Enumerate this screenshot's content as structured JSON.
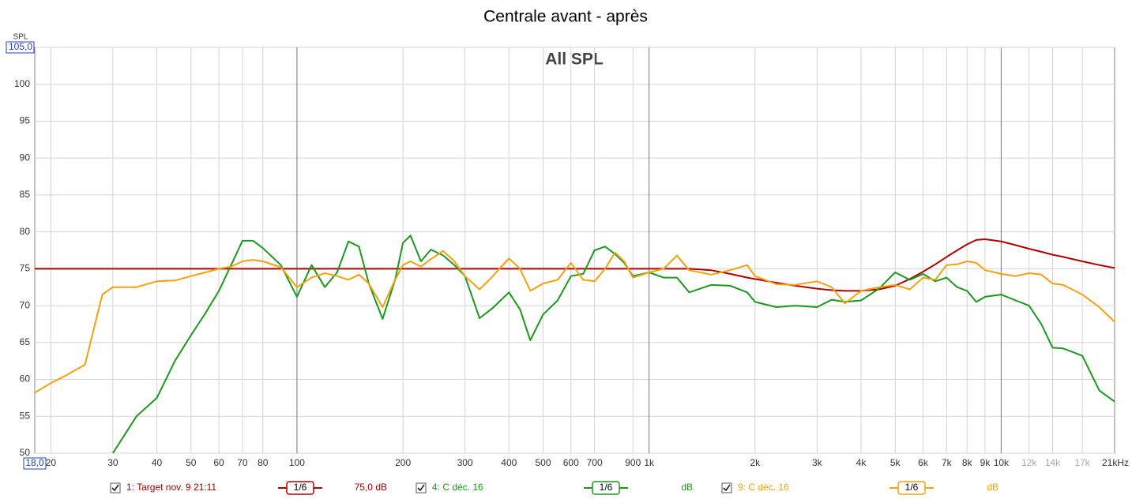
{
  "chart_data": {
    "type": "line",
    "title": "Centrale avant - après",
    "annotation": "All SPL",
    "y_label": "SPL",
    "log_x": true,
    "grid": true,
    "xlim": [
      18,
      21000
    ],
    "ylim": [
      50,
      105
    ],
    "xticks": [
      {
        "value": 18,
        "label": "18,0"
      },
      20,
      30,
      40,
      50,
      60,
      70,
      80,
      100,
      200,
      300,
      400,
      500,
      600,
      700,
      900,
      {
        "value": 1000,
        "label": "1k"
      },
      {
        "value": 2000,
        "label": "2k"
      },
      {
        "value": 3000,
        "label": "3k"
      },
      {
        "value": 4000,
        "label": "4k"
      },
      {
        "value": 5000,
        "label": "5k"
      },
      {
        "value": 6000,
        "label": "6k"
      },
      {
        "value": 7000,
        "label": "7k"
      },
      {
        "value": 8000,
        "label": "8k"
      },
      {
        "value": 9000,
        "label": "9k"
      },
      {
        "value": 10000,
        "label": "10k"
      },
      {
        "value": 12000,
        "label": "12k",
        "color": "#aaaaaa"
      },
      {
        "value": 14000,
        "label": "14k",
        "color": "#aaaaaa"
      },
      {
        "value": 17000,
        "label": "17k",
        "color": "#aaaaaa"
      },
      {
        "value": 21000,
        "label": "21kHz"
      }
    ],
    "yticks": [
      50,
      55,
      60,
      65,
      70,
      75,
      80,
      85,
      90,
      95,
      100,
      {
        "value": 105,
        "label": "105,0"
      }
    ],
    "x": [
      18,
      20,
      22,
      25,
      28,
      30,
      35,
      40,
      45,
      50,
      55,
      60,
      65,
      70,
      75,
      80,
      90,
      100,
      110,
      120,
      130,
      140,
      150,
      160,
      175,
      190,
      200,
      210,
      225,
      240,
      260,
      280,
      300,
      330,
      360,
      400,
      430,
      460,
      500,
      550,
      600,
      650,
      700,
      750,
      800,
      850,
      900,
      1000,
      1100,
      1200,
      1300,
      1500,
      1700,
      1900,
      2000,
      2300,
      2600,
      3000,
      3300,
      3600,
      4000,
      4500,
      5000,
      5500,
      6000,
      6500,
      7000,
      7500,
      8000,
      8500,
      9000,
      10000,
      11000,
      12000,
      13000,
      14000,
      15000,
      17000,
      19000,
      21000
    ],
    "series": [
      {
        "name": "1: Target nov. 9 21:11",
        "smoothing": "1/6",
        "level": "75,0 dB",
        "color": "#b00000",
        "label_color": "#a00000",
        "values": [
          75,
          75,
          75,
          75,
          75,
          75,
          75,
          75,
          75,
          75,
          75,
          75,
          75,
          75,
          75,
          75,
          75,
          75,
          75,
          75,
          75,
          75,
          75,
          75,
          75,
          75,
          75,
          75,
          75,
          75,
          75,
          75,
          75,
          75,
          75,
          75,
          75,
          75,
          75,
          75,
          75,
          75,
          75,
          75,
          75,
          75,
          75,
          75,
          75,
          75,
          75,
          74.8,
          74.3,
          73.8,
          73.6,
          73.1,
          72.7,
          72.3,
          72.1,
          72,
          72,
          72.2,
          72.7,
          73.6,
          74.6,
          75.6,
          76.6,
          77.5,
          78.3,
          78.9,
          79,
          78.7,
          78.2,
          77.7,
          77.3,
          76.9,
          76.6,
          76,
          75.5,
          75.1
        ]
      },
      {
        "name": "4: C déc. 16",
        "smoothing": "1/6",
        "level": "dB",
        "color": "#1a9a1a",
        "label_color": "#10a010",
        "values": [
          null,
          null,
          null,
          null,
          null,
          50,
          55,
          57.5,
          62.5,
          66,
          69,
          72,
          75.5,
          78.8,
          78.8,
          77.8,
          75.5,
          71.2,
          75.5,
          72.5,
          74.5,
          78.7,
          78,
          73,
          68.2,
          73.5,
          78.5,
          79.5,
          76,
          77.6,
          76.8,
          75.5,
          74,
          68.3,
          69.7,
          71.8,
          69.5,
          65.3,
          68.8,
          70.7,
          74,
          74.3,
          77.5,
          78,
          77,
          75.8,
          74,
          74.5,
          73.8,
          73.8,
          71.8,
          72.8,
          72.7,
          71.8,
          70.5,
          69.8,
          70,
          69.8,
          70.8,
          70.5,
          70.7,
          72.3,
          74.5,
          73.5,
          74.3,
          73.3,
          73.8,
          72.5,
          72,
          70.5,
          71.2,
          71.5,
          70.7,
          70,
          67.5,
          64.3,
          64.2,
          63.2,
          58.5,
          57
        ]
      },
      {
        "name": "9: C déc. 16",
        "smoothing": "1/6",
        "level": "dB",
        "color": "#f5a00f",
        "label_color": "#f0a000",
        "values": [
          58.2,
          59.5,
          60.5,
          62,
          71.5,
          72.5,
          72.5,
          73.3,
          73.4,
          74,
          74.5,
          75,
          75.3,
          76,
          76.2,
          76,
          75.2,
          72.5,
          73.8,
          74.4,
          74,
          73.5,
          74.2,
          73,
          69.8,
          73.5,
          75.5,
          76,
          75.3,
          76.3,
          77.4,
          76,
          74,
          72.2,
          74,
          76.4,
          75,
          72,
          73,
          73.5,
          75.8,
          73.5,
          73.3,
          75,
          77.2,
          76,
          73.8,
          74.5,
          75,
          76.8,
          74.8,
          74.2,
          74.8,
          75.5,
          74,
          72.9,
          72.8,
          73.3,
          72.5,
          70.3,
          72,
          72.5,
          72.8,
          72.2,
          73.8,
          73.5,
          75.5,
          75.6,
          76,
          75.8,
          74.8,
          74.3,
          74,
          74.4,
          74.2,
          73,
          72.8,
          71.5,
          69.8,
          67.8
        ]
      }
    ]
  }
}
